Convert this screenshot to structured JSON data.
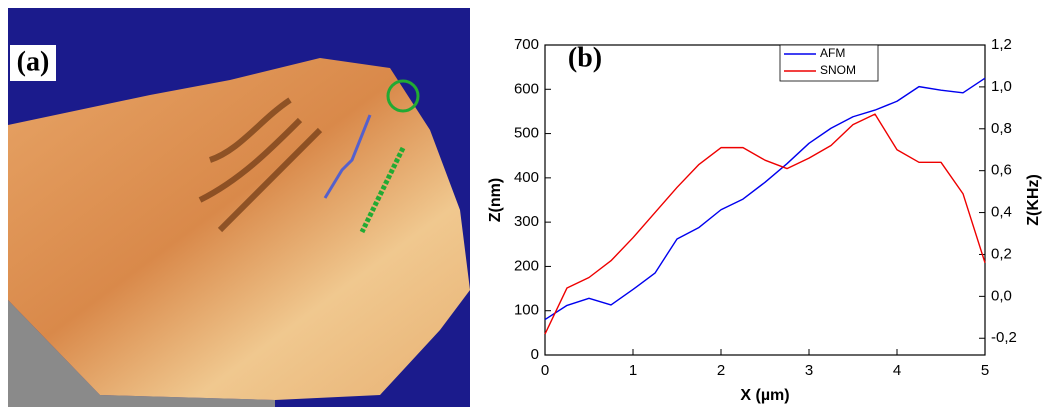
{
  "image_panel": {
    "label": "(a)"
  },
  "chart_data": {
    "type": "line",
    "panel_label": "(b)",
    "x_label": "X (µm)",
    "y_label": "Z(nm)",
    "y2_label": "Z(KHz)",
    "x": [
      0,
      0.25,
      0.5,
      0.75,
      1,
      1.25,
      1.5,
      1.75,
      2,
      2.25,
      2.5,
      2.75,
      3,
      3.25,
      3.5,
      3.75,
      4,
      4.25,
      4.5,
      4.75,
      5
    ],
    "series": [
      {
        "name": "AFM",
        "color": "#0000ee",
        "values": [
          80,
          112,
          128,
          113,
          148,
          185,
          262,
          288,
          328,
          352,
          390,
          432,
          478,
          512,
          538,
          553,
          573,
          606,
          598,
          592,
          625
        ]
      },
      {
        "name": "SNOM",
        "color": "#ee0000",
        "axis": "y2",
        "values": [
          -0.18,
          0.04,
          0.09,
          0.17,
          0.28,
          0.4,
          0.52,
          0.63,
          0.71,
          0.71,
          0.65,
          0.61,
          0.66,
          0.72,
          0.82,
          0.87,
          0.7,
          0.64,
          0.64,
          0.49,
          0.16
        ]
      }
    ],
    "xlim": [
      0,
      5
    ],
    "xticks": [
      0,
      1,
      2,
      3,
      4,
      5
    ],
    "ylim": [
      0,
      700
    ],
    "yticks": [
      0,
      100,
      200,
      300,
      400,
      500,
      600,
      700
    ],
    "y2lim": [
      -0.28,
      1.2
    ],
    "y2ticks": [
      {
        "value": -0.2,
        "label": "-0,2"
      },
      {
        "value": 0,
        "label": "0,0"
      },
      {
        "value": 0.2,
        "label": "0,2"
      },
      {
        "value": 0.4,
        "label": "0,4"
      },
      {
        "value": 0.6,
        "label": "0,6"
      },
      {
        "value": 0.8,
        "label": "0,8"
      },
      {
        "value": 1.0,
        "label": "1,0"
      },
      {
        "value": 1.2,
        "label": "1,2"
      }
    ],
    "legend": "upper right"
  }
}
